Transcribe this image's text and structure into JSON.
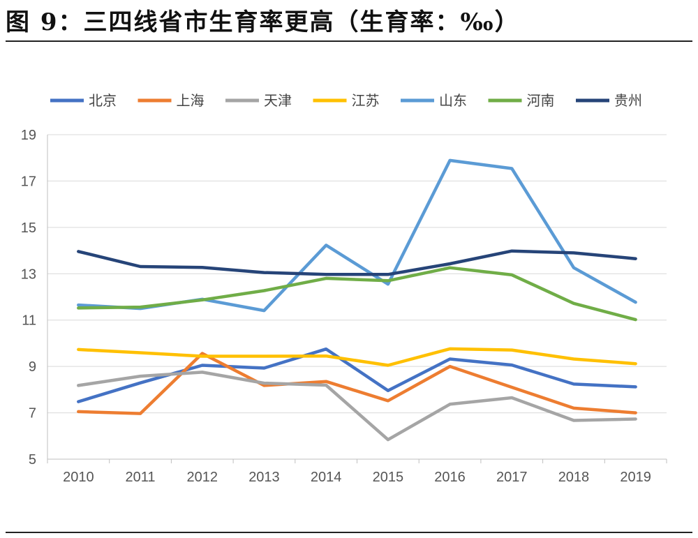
{
  "figure": {
    "title": "图 9：三四线省市生育率更高（生育率：‰）"
  },
  "chart_data": {
    "type": "line",
    "title": "",
    "xlabel": "",
    "ylabel": "",
    "x": [
      "2010",
      "2011",
      "2012",
      "2013",
      "2014",
      "2015",
      "2016",
      "2017",
      "2018",
      "2019"
    ],
    "ylim": [
      5,
      19
    ],
    "yticks": [
      5,
      7,
      9,
      11,
      13,
      15,
      17,
      19
    ],
    "grid": true,
    "legend_position": "top",
    "series": [
      {
        "name": "北京",
        "color": "#4472C4",
        "values": [
          7.48,
          8.29,
          9.05,
          8.93,
          9.75,
          7.96,
          9.32,
          9.06,
          8.24,
          8.12
        ]
      },
      {
        "name": "上海",
        "color": "#ED7D31",
        "values": [
          7.05,
          6.97,
          9.56,
          8.18,
          8.35,
          7.52,
          9.0,
          8.1,
          7.2,
          7.0
        ]
      },
      {
        "name": "天津",
        "color": "#A5A5A5",
        "values": [
          8.18,
          8.58,
          8.75,
          8.28,
          8.19,
          5.84,
          7.37,
          7.65,
          6.67,
          6.73
        ]
      },
      {
        "name": "江苏",
        "color": "#FFC000",
        "values": [
          9.73,
          9.59,
          9.44,
          9.44,
          9.45,
          9.05,
          9.76,
          9.71,
          9.32,
          9.12
        ]
      },
      {
        "name": "山东",
        "color": "#5B9BD5",
        "values": [
          11.65,
          11.5,
          11.9,
          11.41,
          14.23,
          12.55,
          17.89,
          17.54,
          13.26,
          11.77
        ]
      },
      {
        "name": "河南",
        "color": "#70AD47",
        "values": [
          11.52,
          11.56,
          11.87,
          12.27,
          12.8,
          12.7,
          13.26,
          12.95,
          11.72,
          11.02
        ]
      },
      {
        "name": "贵州",
        "color": "#264478",
        "values": [
          13.96,
          13.31,
          13.27,
          13.05,
          12.97,
          12.97,
          13.43,
          13.98,
          13.9,
          13.65
        ]
      }
    ]
  }
}
